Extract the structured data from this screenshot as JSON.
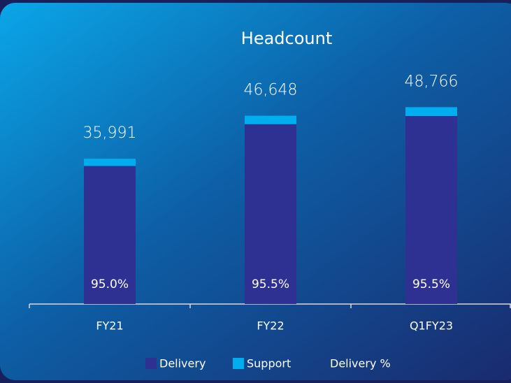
{
  "chart_data": {
    "type": "stacked_bar",
    "title": "Headcount",
    "categories": [
      "FY21",
      "FY22",
      "Q1FY23"
    ],
    "series": [
      {
        "name": "Delivery",
        "color": "#2e3192",
        "values": [
          34191,
          44549,
          46572
        ]
      },
      {
        "name": "Support",
        "color": "#00aeef",
        "values": [
          1800,
          2099,
          2194
        ]
      },
      {
        "name": "Delivery %",
        "values": [
          95.0,
          95.5,
          95.5
        ],
        "value_labels": [
          "95.0%",
          "95.5%",
          "95.5%"
        ]
      }
    ],
    "totals": {
      "values": [
        35991,
        46648,
        48766
      ],
      "value_labels": [
        "35,991",
        "46,648",
        "48,766"
      ]
    },
    "ylim": [
      0,
      58000
    ]
  }
}
